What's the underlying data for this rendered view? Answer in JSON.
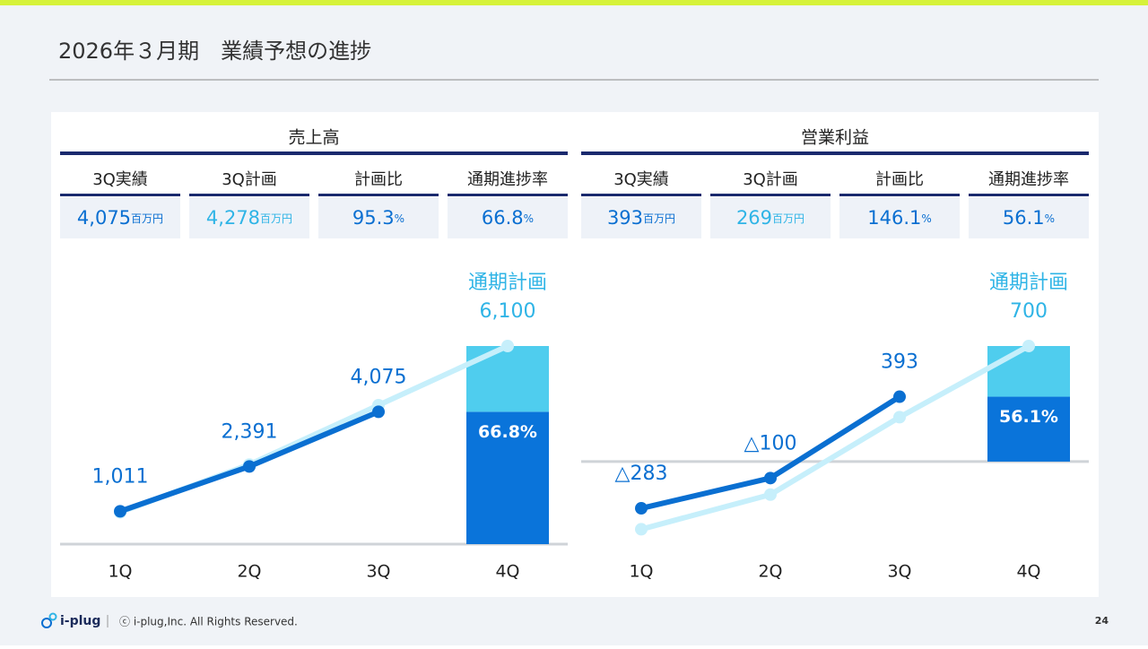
{
  "header": {
    "title": "2026年３月期　業績予想の進捗"
  },
  "panels": [
    {
      "title": "売上高",
      "kpis": [
        {
          "label": "3Q実績",
          "value": "4,075",
          "unit": "百万円",
          "color": "#0a6fd1"
        },
        {
          "label": "3Q計画",
          "value": "4,278",
          "unit": "百万円",
          "color": "#2fb4e6"
        },
        {
          "label": "計画比",
          "value": "95.3",
          "unit": "%",
          "color": "#0a6fd1"
        },
        {
          "label": "通期進捗率",
          "value": "66.8",
          "unit": "%",
          "color": "#0a6fd1"
        }
      ]
    },
    {
      "title": "営業利益",
      "kpis": [
        {
          "label": "3Q実績",
          "value": "393",
          "unit": "百万円",
          "color": "#0a6fd1"
        },
        {
          "label": "3Q計画",
          "value": "269",
          "unit": "百万円",
          "color": "#2fb4e6"
        },
        {
          "label": "計画比",
          "value": "146.1",
          "unit": "%",
          "color": "#0a6fd1"
        },
        {
          "label": "通期進捗率",
          "value": "56.1",
          "unit": "%",
          "color": "#0a6fd1"
        }
      ]
    }
  ],
  "chart_data": [
    {
      "type": "combo",
      "categories": [
        "1Q",
        "2Q",
        "3Q",
        "4Q"
      ],
      "ylim": [
        0,
        6100
      ],
      "annotation": "通期計画",
      "bar_label": "66.8%",
      "series": [
        {
          "kind": "bar",
          "color": "#0a74da",
          "values": [
            null,
            null,
            null,
            4075
          ]
        },
        {
          "kind": "bar",
          "color": "#4fcdee",
          "values": [
            null,
            null,
            null,
            2025
          ]
        },
        {
          "kind": "line",
          "color": "#c6effb",
          "values": [
            980,
            2450,
            4278,
            6100
          ],
          "value_labels": [
            null,
            null,
            null,
            "6,100"
          ],
          "label_color": "#2fb4e6"
        },
        {
          "kind": "line",
          "color": "#0a6fd1",
          "values": [
            1011,
            2391,
            4075,
            null
          ],
          "value_labels": [
            "1,011",
            "2,391",
            "4,075",
            null
          ],
          "label_color": "#0a6fd1"
        }
      ]
    },
    {
      "type": "combo",
      "categories": [
        "1Q",
        "2Q",
        "3Q",
        "4Q"
      ],
      "ylim": [
        -500,
        700
      ],
      "annotation": "通期計画",
      "bar_label": "56.1%",
      "series": [
        {
          "kind": "bar",
          "color": "#0a74da",
          "values": [
            null,
            null,
            null,
            393
          ]
        },
        {
          "kind": "bar",
          "color": "#4fcdee",
          "values": [
            null,
            null,
            null,
            307
          ]
        },
        {
          "kind": "line",
          "color": "#c6effb",
          "values": [
            -410,
            -200,
            269,
            700
          ],
          "value_labels": [
            null,
            null,
            null,
            "700"
          ],
          "label_color": "#2fb4e6"
        },
        {
          "kind": "line",
          "color": "#0a6fd1",
          "values": [
            -283,
            -100,
            393,
            null
          ],
          "value_labels": [
            "△283",
            "△100",
            "393",
            null
          ],
          "label_color": "#0a6fd1"
        }
      ]
    }
  ],
  "footer": {
    "logo": "i-plug",
    "copyright": "ⓒ i-plug,Inc. All Rights Reserved.",
    "page": "24"
  }
}
